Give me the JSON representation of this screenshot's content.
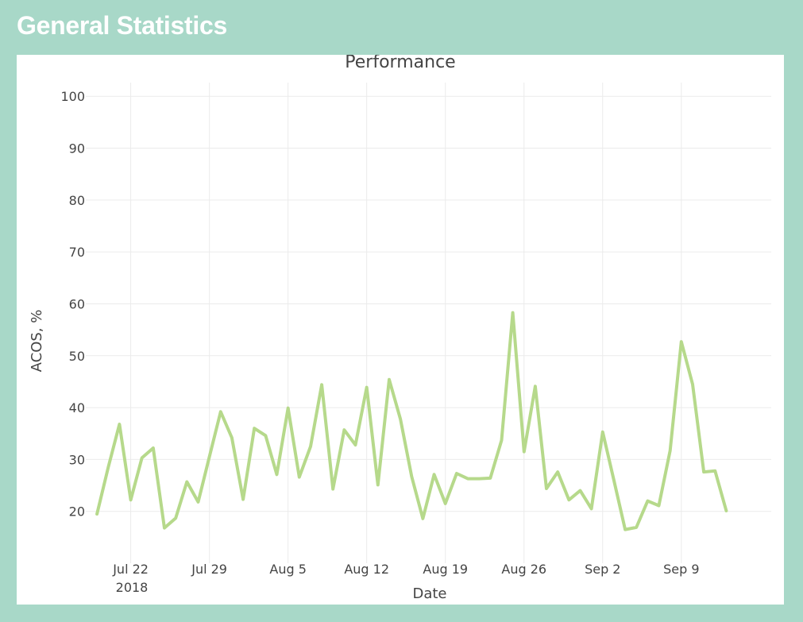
{
  "panel": {
    "title": "General Statistics"
  },
  "chart_data": {
    "type": "line",
    "title": "Performance",
    "xlabel": "Date",
    "ylabel": "ACOS, %",
    "year_label": "2018",
    "ylim": [
      10,
      108
    ],
    "xlim": [
      "2018-07-18",
      "2018-09-17"
    ],
    "grid": true,
    "line_color": "#b6d98b",
    "x_ticks": [
      {
        "date": "2018-07-22",
        "label": "Jul 22"
      },
      {
        "date": "2018-07-29",
        "label": "Jul 29"
      },
      {
        "date": "2018-08-05",
        "label": "Aug 5"
      },
      {
        "date": "2018-08-12",
        "label": "Aug 12"
      },
      {
        "date": "2018-08-19",
        "label": "Aug 19"
      },
      {
        "date": "2018-08-26",
        "label": "Aug 26"
      },
      {
        "date": "2018-09-02",
        "label": "Sep 2"
      },
      {
        "date": "2018-09-09",
        "label": "Sep 9"
      }
    ],
    "y_ticks": [
      20,
      30,
      40,
      50,
      60,
      70,
      80,
      90,
      100
    ],
    "series": [
      {
        "x": [
          "2018-07-19",
          "2018-07-20",
          "2018-07-21",
          "2018-07-22",
          "2018-07-23",
          "2018-07-24",
          "2018-07-25",
          "2018-07-26",
          "2018-07-27",
          "2018-07-28",
          "2018-07-29",
          "2018-07-30",
          "2018-07-31",
          "2018-08-01",
          "2018-08-02",
          "2018-08-03",
          "2018-08-04",
          "2018-08-05",
          "2018-08-06",
          "2018-08-07",
          "2018-08-08",
          "2018-08-09",
          "2018-08-10",
          "2018-08-11",
          "2018-08-12",
          "2018-08-13",
          "2018-08-14",
          "2018-08-15",
          "2018-08-16",
          "2018-08-17",
          "2018-08-18",
          "2018-08-19",
          "2018-08-20",
          "2018-08-21",
          "2018-08-22",
          "2018-08-23",
          "2018-08-24",
          "2018-08-25",
          "2018-08-26",
          "2018-08-27",
          "2018-08-28",
          "2018-08-29",
          "2018-08-30",
          "2018-08-31",
          "2018-09-01",
          "2018-09-02",
          "2018-09-03",
          "2018-09-04",
          "2018-09-05",
          "2018-09-06",
          "2018-09-07",
          "2018-09-08",
          "2018-09-09",
          "2018-09-10",
          "2018-09-11",
          "2018-09-12"
        ],
        "y": [
          19.5,
          28.5,
          36.8,
          22.2,
          30.3,
          32.2,
          16.8,
          18.7,
          25.7,
          21.8,
          30.5,
          39.2,
          34.2,
          22.3,
          36.0,
          34.6,
          27.1,
          39.9,
          26.6,
          32.5,
          44.4,
          24.3,
          35.7,
          32.8,
          43.9,
          25.1,
          45.4,
          37.8,
          26.7,
          18.6,
          27.1,
          21.5,
          27.3,
          26.3,
          26.3,
          26.4,
          33.7,
          58.3,
          31.5,
          44.1,
          24.4,
          27.6,
          22.2,
          24.0,
          20.5,
          35.3,
          26.0,
          16.5,
          16.9,
          22.0,
          21.1,
          31.7,
          52.7,
          44.5,
          27.6,
          27.8
        ]
      }
    ],
    "last_point": {
      "x": "2018-09-13",
      "y": 20.1
    }
  }
}
